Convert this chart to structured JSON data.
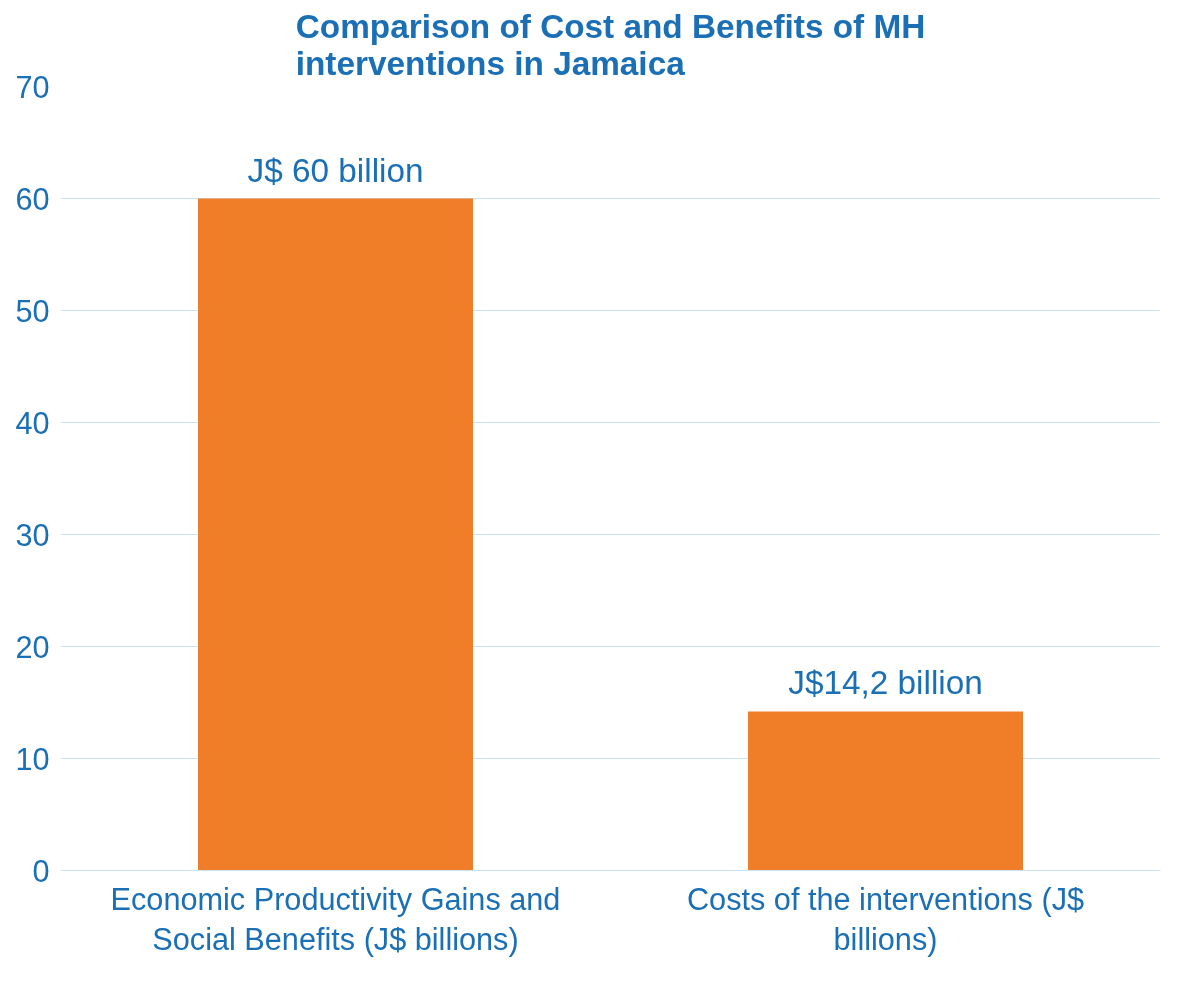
{
  "chart_data": {
    "type": "bar",
    "title": "Comparison of Cost and Benefits of MH interventions in Jamaica",
    "categories": [
      "Economic Productivity Gains and Social Benefits (J$ billions)",
      "Costs of the interventions (J$ billions)"
    ],
    "values": [
      60,
      14.2
    ],
    "color": "#f07d28",
    "value_labels": [
      "J$ 60 billion",
      "J$14,2 billion"
    ],
    "ylim": [
      0,
      70
    ],
    "yticks": [
      0,
      10,
      20,
      30,
      40,
      50,
      60,
      70
    ],
    "grid": "y"
  }
}
